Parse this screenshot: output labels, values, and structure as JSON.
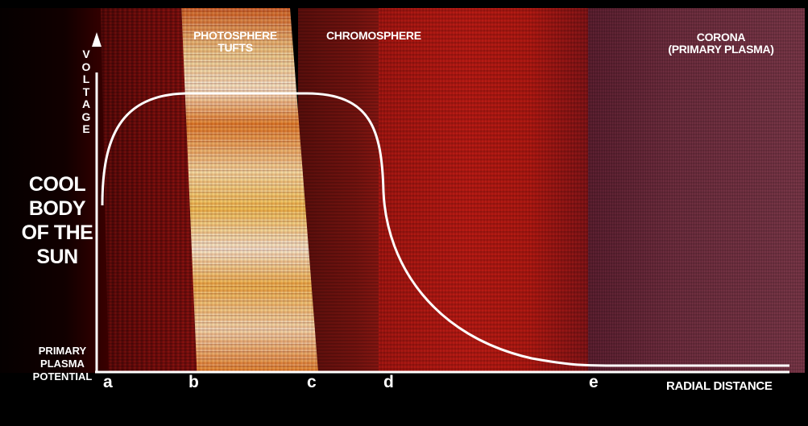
{
  "labels": {
    "photosphere": "PHOTOSPHERE TUFTS",
    "chromosphere": "CHROMOSPHERE",
    "corona": "CORONA (PRIMARY PLASMA)",
    "voltage_axis": "VOLTAGE",
    "cool_body": "COOL BODY OF THE SUN",
    "primary_plasma_potential": "PRIMARY PLASMA POTENTIAL",
    "radial_distance": "RADIAL DISTANCE"
  },
  "points": {
    "a": "a",
    "b": "b",
    "c": "c",
    "d": "d",
    "e": "e"
  },
  "colors": {
    "curve": "#ffffff",
    "axis": "#ffffff",
    "background": "#000000"
  }
}
